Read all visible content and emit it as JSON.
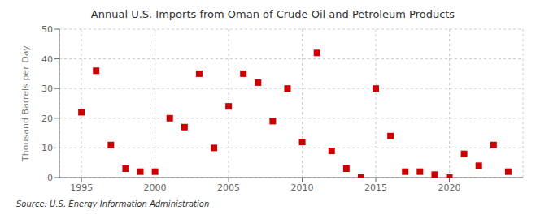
{
  "chart_data": {
    "type": "scatter",
    "title": "Annual U.S. Imports from Oman of Crude Oil and Petroleum Products",
    "y_label": "Thousand Barrels per Day",
    "annotations": [
      "Source: U.S. Energy Information Administration"
    ],
    "x": [
      1995,
      1996,
      1997,
      1998,
      1999,
      2000,
      2001,
      2002,
      2003,
      2004,
      2005,
      2006,
      2007,
      2008,
      2009,
      2010,
      2011,
      2012,
      2013,
      2014,
      2015,
      2016,
      2017,
      2018,
      2019,
      2020,
      2021,
      2022,
      2023,
      2024
    ],
    "values": [
      22,
      36,
      11,
      3,
      2,
      2,
      20,
      17,
      35,
      10,
      24,
      35,
      32,
      19,
      30,
      12,
      42,
      9,
      3,
      0,
      30,
      14,
      2,
      2,
      1,
      0,
      8,
      4,
      11,
      2
    ],
    "color": "#cc0000",
    "marker": "square",
    "xlim": [
      1993.5,
      2025
    ],
    "ylim": [
      0,
      50
    ],
    "xticks": [
      1995,
      2000,
      2005,
      2010,
      2015,
      2020
    ],
    "yticks": [
      0,
      10,
      20,
      30,
      40,
      50
    ],
    "grid": true
  }
}
